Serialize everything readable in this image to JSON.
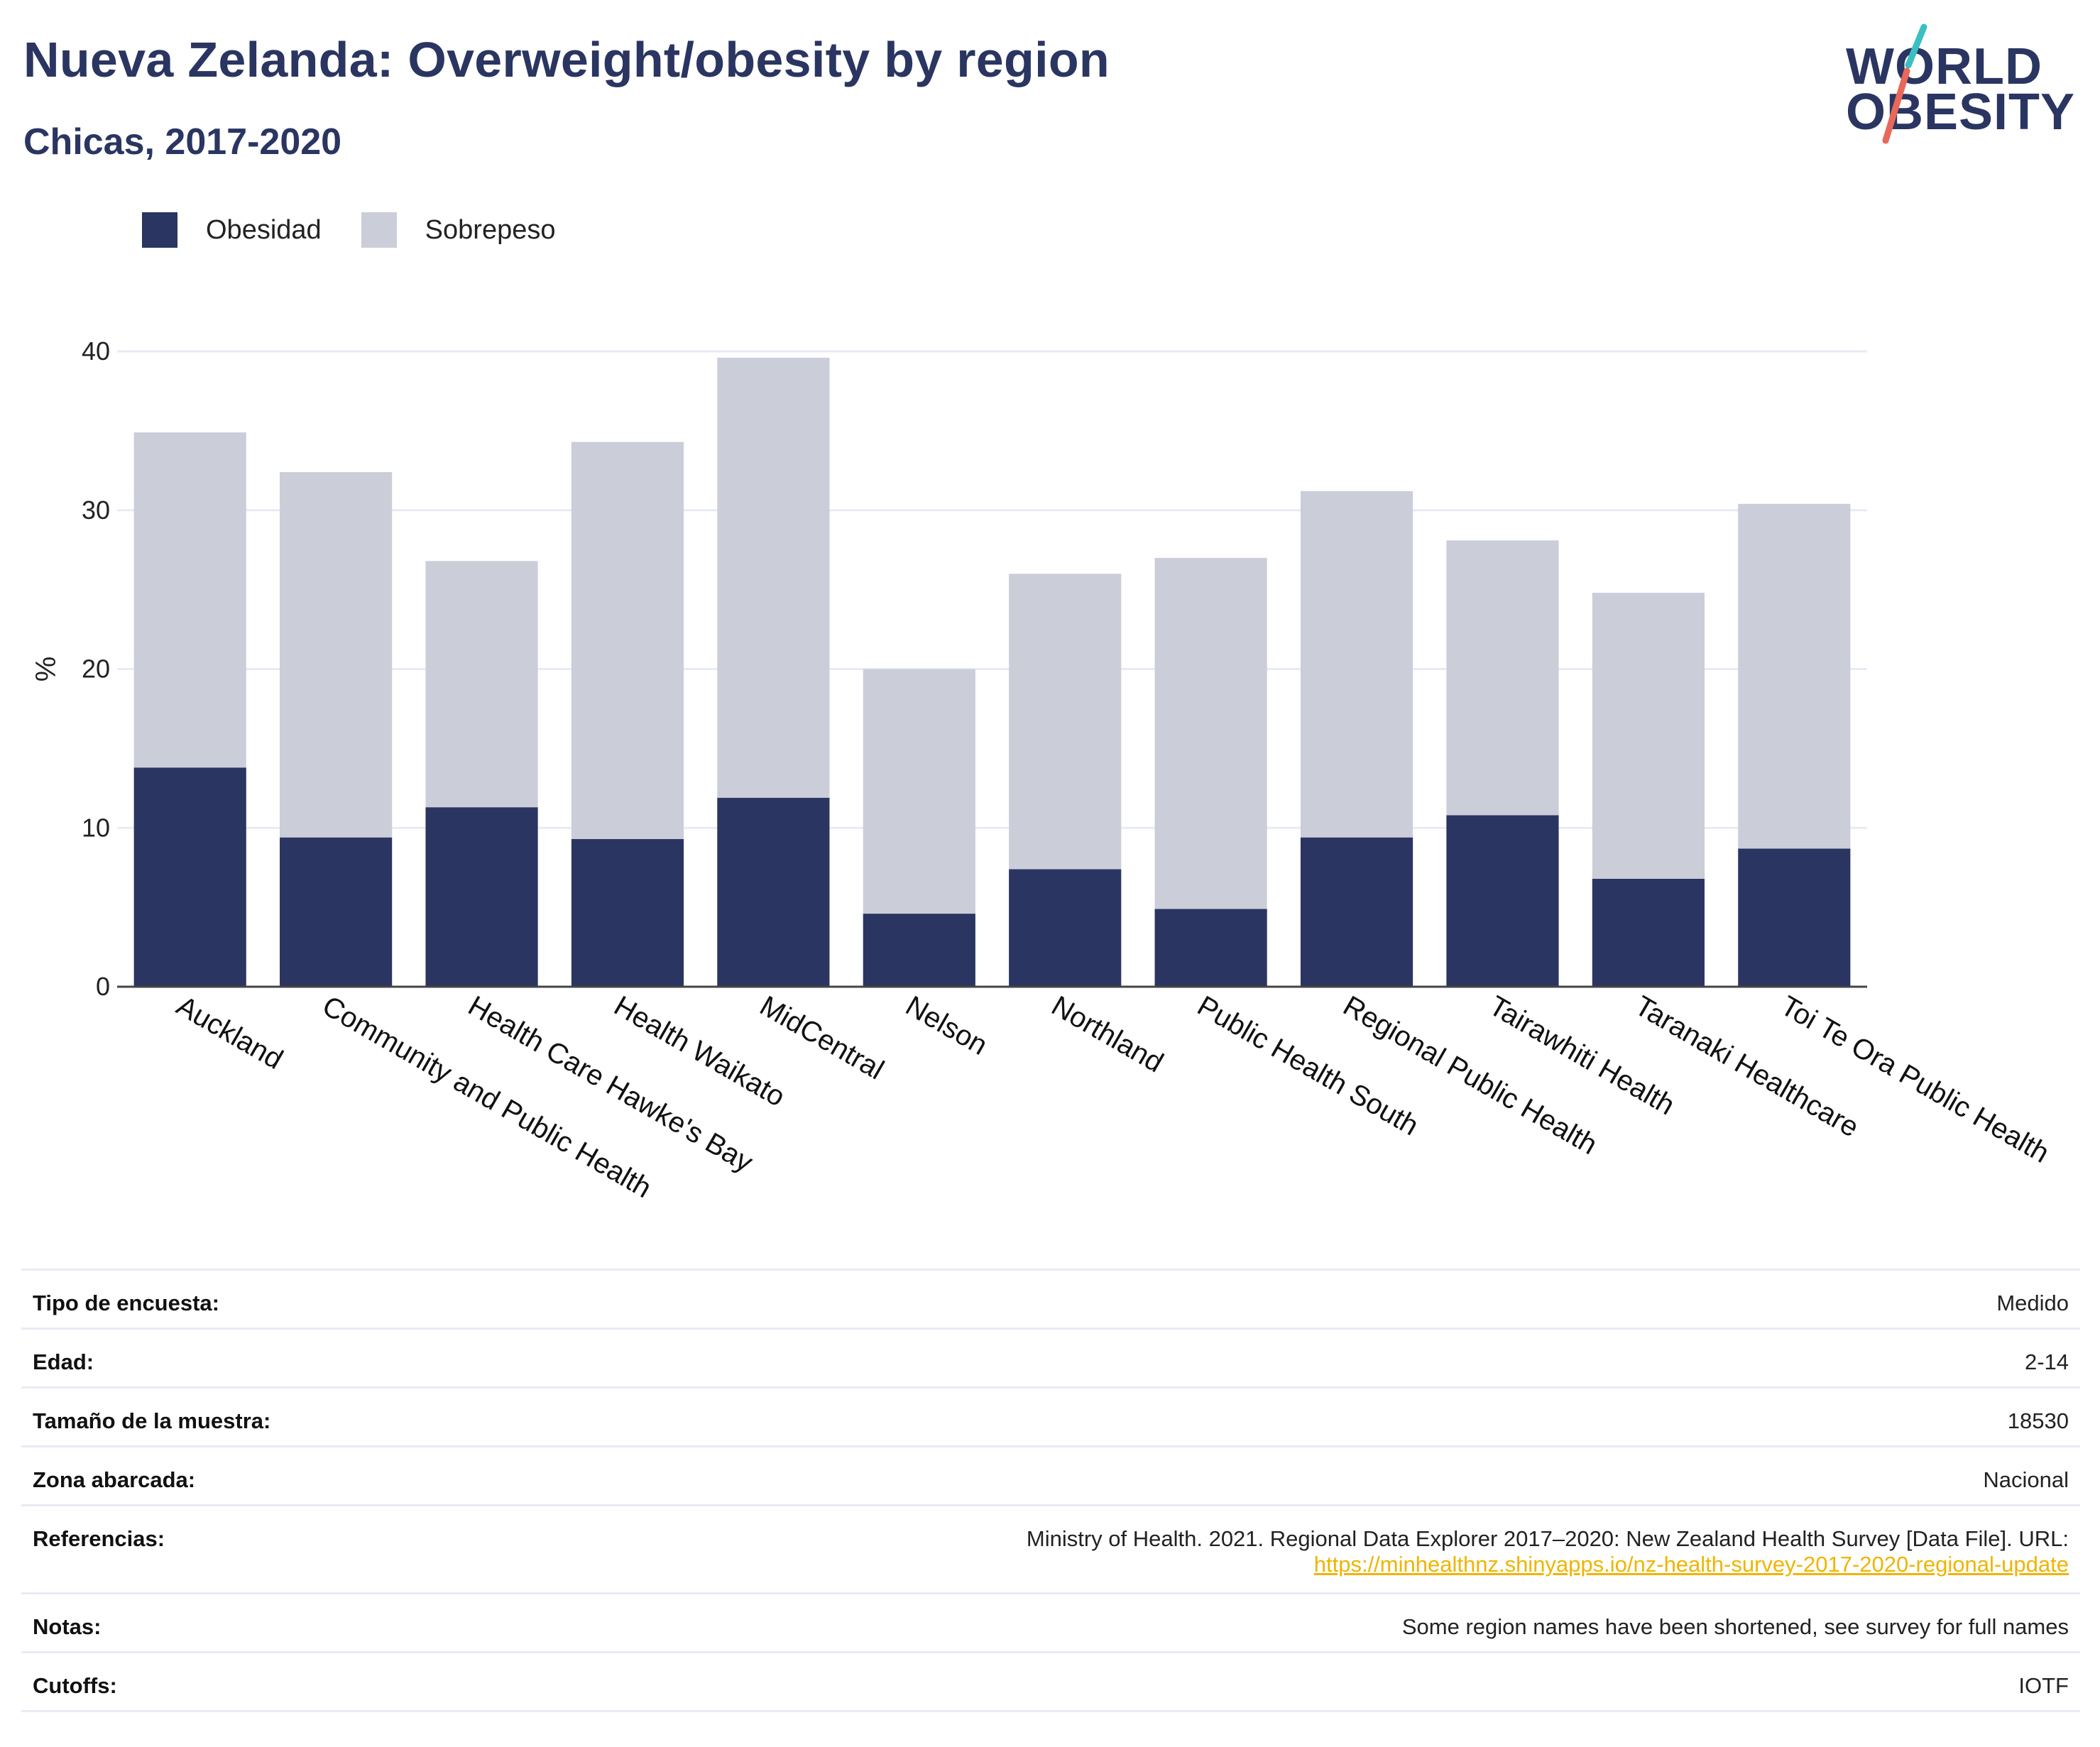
{
  "header": {
    "title": "Nueva Zelanda: Overweight/obesity by region",
    "subtitle": "Chicas, 2017-2020"
  },
  "logo": {
    "line1": "WORLD",
    "line2": "OBESITY"
  },
  "colors": {
    "obesity": "#2a3561",
    "overweight": "#cbcdd9",
    "title": "#2a3561",
    "link": "#f0b400",
    "grid": "#e8ebf4",
    "logo_slash_teal": "#3bbfc2",
    "logo_slash_coral": "#e8685a"
  },
  "legend": [
    {
      "label": "Obesidad",
      "color": "#2a3561"
    },
    {
      "label": "Sobrepeso",
      "color": "#cbcdd9"
    }
  ],
  "chart_data": {
    "type": "bar",
    "stacked": true,
    "title": "Nueva Zelanda: Overweight/obesity by region",
    "subtitle": "Chicas, 2017-2020",
    "xlabel": "",
    "ylabel": "%",
    "ylim": [
      0,
      40
    ],
    "yticks": [
      0,
      10,
      20,
      30,
      40
    ],
    "grid": true,
    "legend_position": "top-left",
    "categories": [
      "Auckland",
      "Community and Public Health",
      "Health Care Hawke's Bay",
      "Health Waikato",
      "MidCentral",
      "Nelson",
      "Northland",
      "Public Health South",
      "Regional Public Health",
      "Tairawhiti Health",
      "Taranaki Healthcare",
      "Toi Te Ora Public Health"
    ],
    "series": [
      {
        "name": "Obesidad",
        "values": [
          13.8,
          9.4,
          11.3,
          9.3,
          11.9,
          4.6,
          7.4,
          4.9,
          9.4,
          10.8,
          6.8,
          8.7
        ]
      },
      {
        "name": "Sobrepeso",
        "values": [
          21.1,
          23.0,
          15.5,
          25.0,
          27.7,
          15.4,
          18.6,
          22.1,
          21.8,
          17.3,
          18.0,
          21.7
        ]
      }
    ]
  },
  "meta": [
    {
      "key": "Tipo de encuesta:",
      "value": "Medido"
    },
    {
      "key": "Edad:",
      "value": "2-14"
    },
    {
      "key": "Tamaño de la muestra:",
      "value": "18530"
    },
    {
      "key": "Zona abarcada:",
      "value": "Nacional"
    },
    {
      "key": "Referencias:",
      "value": "Ministry of Health. 2021. Regional Data Explorer 2017–2020: New Zealand Health Survey [Data File]. URL:",
      "link": "https://minhealthnz.shinyapps.io/nz-health-survey-2017-2020-regional-update"
    },
    {
      "key": "Notas:",
      "value": "Some region names have been shortened, see survey for full names"
    },
    {
      "key": "Cutoffs:",
      "value": "IOTF"
    }
  ]
}
